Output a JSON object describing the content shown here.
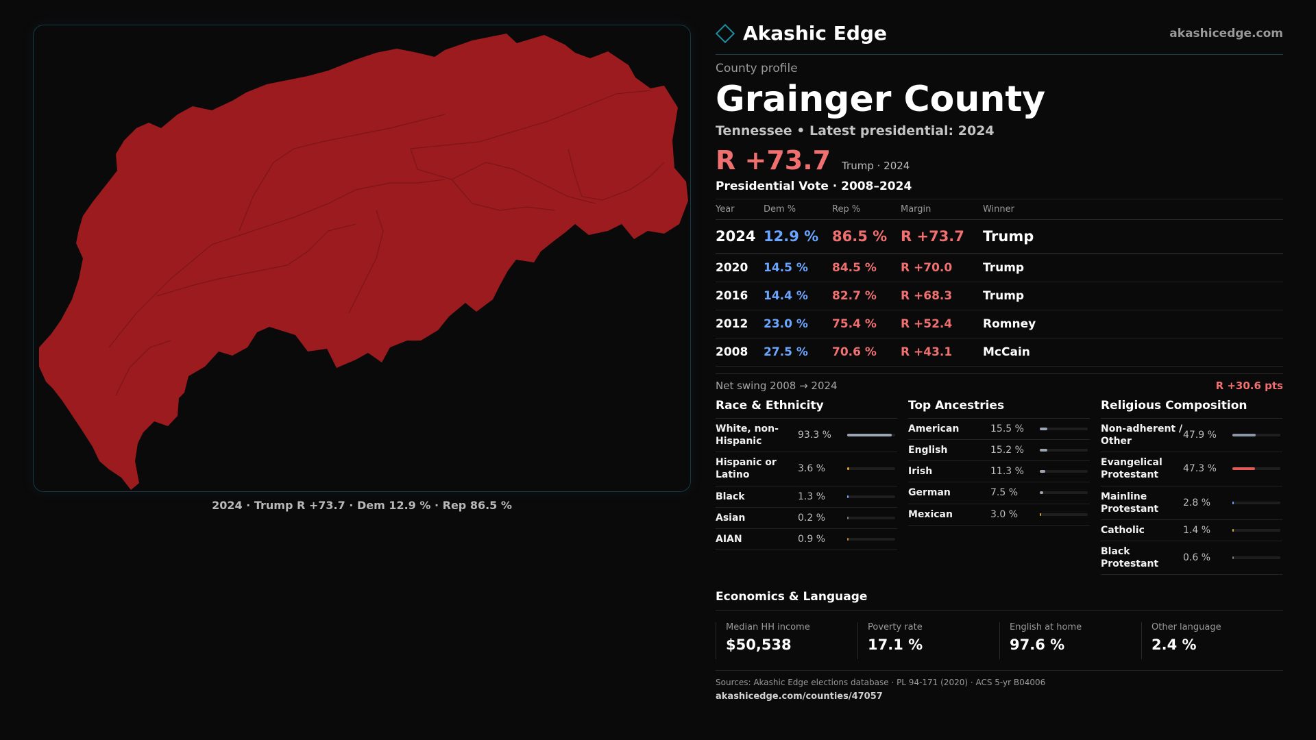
{
  "brand": {
    "name": "Akashic Edge",
    "url": "akashicedge.com"
  },
  "map": {
    "caption": "2024 · Trump R +73.7 · Dem 12.9 % · Rep 86.5 %",
    "fill_color": "#9b1b1e"
  },
  "header": {
    "kicker": "County profile",
    "title": "Grainger County",
    "subtitle": "Tennessee • Latest presidential: 2024",
    "margin": "R +73.7",
    "margin_note": "Trump · 2024"
  },
  "results": {
    "heading": "Presidential Vote · 2008–2024",
    "columns": [
      "Year",
      "Dem %",
      "Rep %",
      "Margin",
      "Winner"
    ],
    "rows": [
      {
        "year": "2024",
        "dem": "12.9 %",
        "rep": "86.5 %",
        "margin": "R +73.7",
        "winner": "Trump"
      },
      {
        "year": "2020",
        "dem": "14.5 %",
        "rep": "84.5 %",
        "margin": "R +70.0",
        "winner": "Trump"
      },
      {
        "year": "2016",
        "dem": "14.4 %",
        "rep": "82.7 %",
        "margin": "R +68.3",
        "winner": "Trump"
      },
      {
        "year": "2012",
        "dem": "23.0 %",
        "rep": "75.4 %",
        "margin": "R +52.4",
        "winner": "Romney"
      },
      {
        "year": "2008",
        "dem": "27.5 %",
        "rep": "70.6 %",
        "margin": "R +43.1",
        "winner": "McCain"
      }
    ],
    "swing_label": "Net swing 2008 → 2024",
    "swing_value": "R +30.6 pts"
  },
  "race": {
    "heading": "Race & Ethnicity",
    "items": [
      {
        "label": "White, non-Hispanic",
        "value": "93.3 %",
        "pct": 93.3,
        "color": "#9aa4b4"
      },
      {
        "label": "Hispanic or Latino",
        "value": "3.6 %",
        "pct": 3.6,
        "color": "#e0a030"
      },
      {
        "label": "Black",
        "value": "1.3 %",
        "pct": 1.3,
        "color": "#6aa6ff"
      },
      {
        "label": "Asian",
        "value": "0.2 %",
        "pct": 0.2,
        "color": "#7a7a7a"
      },
      {
        "label": "AIAN",
        "value": "0.9 %",
        "pct": 0.9,
        "color": "#c08040"
      }
    ]
  },
  "ancestry": {
    "heading": "Top Ancestries",
    "items": [
      {
        "label": "American",
        "value": "15.5 %",
        "pct": 15.5,
        "color": "#9aa4b4"
      },
      {
        "label": "English",
        "value": "15.2 %",
        "pct": 15.2,
        "color": "#9aa4b4"
      },
      {
        "label": "Irish",
        "value": "11.3 %",
        "pct": 11.3,
        "color": "#9aa4b4"
      },
      {
        "label": "German",
        "value": "7.5 %",
        "pct": 7.5,
        "color": "#9aa4b4"
      },
      {
        "label": "Mexican",
        "value": "3.0 %",
        "pct": 3.0,
        "color": "#e0a030"
      }
    ]
  },
  "religion": {
    "heading": "Religious Composition",
    "items": [
      {
        "label": "Non-adherent / Other",
        "value": "47.9 %",
        "pct": 47.9,
        "color": "#8a95a8"
      },
      {
        "label": "Evangelical Protestant",
        "value": "47.3 %",
        "pct": 47.3,
        "color": "#e05a5a"
      },
      {
        "label": "Mainline Protestant",
        "value": "2.8 %",
        "pct": 2.8,
        "color": "#6aa6ff"
      },
      {
        "label": "Catholic",
        "value": "1.4 %",
        "pct": 1.4,
        "color": "#d0b040"
      },
      {
        "label": "Black Protestant",
        "value": "0.6 %",
        "pct": 0.6,
        "color": "#7a7a7a"
      }
    ]
  },
  "economics": {
    "heading": "Economics & Language",
    "items": [
      {
        "label": "Median HH income",
        "value": "$50,538"
      },
      {
        "label": "Poverty rate",
        "value": "17.1 %"
      },
      {
        "label": "English at home",
        "value": "97.6 %"
      },
      {
        "label": "Other language",
        "value": "2.4 %"
      }
    ]
  },
  "sources": {
    "text": "Sources: Akashic Edge elections database · PL 94-171 (2020) · ACS 5-yr B04006",
    "url": "akashicedge.com/counties/47057"
  }
}
